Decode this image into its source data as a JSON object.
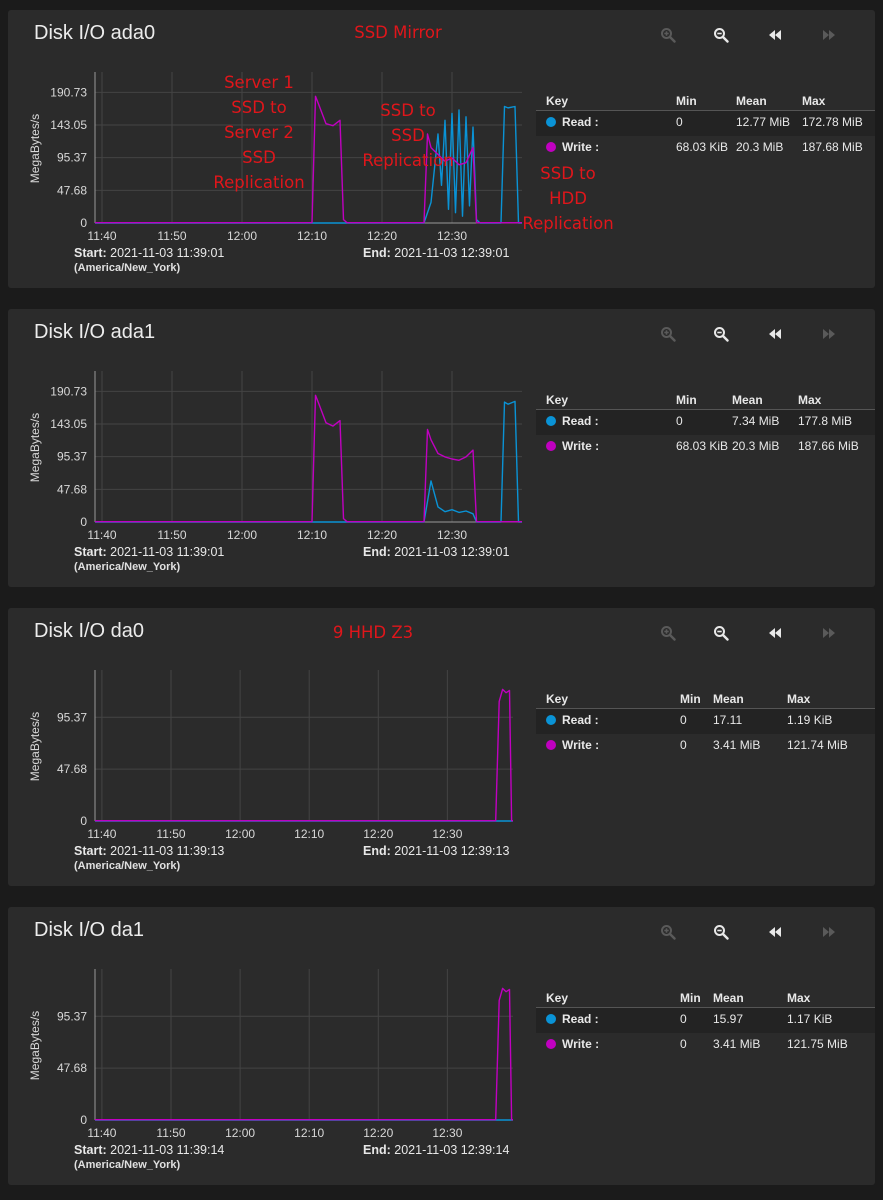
{
  "colors": {
    "read": "#0a93d6",
    "write": "#c000c0",
    "annotation": "#e0161b",
    "card": "#2b2b2b"
  },
  "toolbar_icons": [
    "zoom-in-icon",
    "zoom-out-icon",
    "rewind-icon",
    "forward-icon"
  ],
  "cards": [
    {
      "title": "Disk I/O ada0",
      "annotations": [
        {
          "text": "SSD Mirror"
        },
        {
          "text": "Server 1\nSSD to\nServer 2\nSSD\nReplication"
        },
        {
          "text": "SSD to\nSSD\nReplication"
        },
        {
          "text": "SSD to\nHDD\nReplication"
        }
      ],
      "start_label": "Start:",
      "start_value": "2021-11-03 11:39:01",
      "timezone": "(America/New_York)",
      "end_label": "End:",
      "end_value": "2021-11-03 12:39:01",
      "legend": {
        "headers": {
          "key": "Key",
          "min": "Min",
          "mean": "Mean",
          "max": "Max"
        },
        "rows": [
          {
            "name": "Read :",
            "min": "0",
            "mean": "12.77 MiB",
            "max": "172.78 MiB"
          },
          {
            "name": "Write :",
            "min": "68.03 KiB",
            "mean": "20.3 MiB",
            "max": "187.68 MiB"
          }
        ]
      }
    },
    {
      "title": "Disk I/O ada1",
      "annotations": [],
      "start_label": "Start:",
      "start_value": "2021-11-03 11:39:01",
      "timezone": "(America/New_York)",
      "end_label": "End:",
      "end_value": "2021-11-03 12:39:01",
      "legend": {
        "headers": {
          "key": "Key",
          "min": "Min",
          "mean": "Mean",
          "max": "Max"
        },
        "rows": [
          {
            "name": "Read :",
            "min": "0",
            "mean": "7.34 MiB",
            "max": "177.8 MiB"
          },
          {
            "name": "Write :",
            "min": "68.03 KiB",
            "mean": "20.3 MiB",
            "max": "187.66 MiB"
          }
        ]
      }
    },
    {
      "title": "Disk I/O da0",
      "annotations": [
        {
          "text": "9 HHD Z3"
        }
      ],
      "start_label": "Start:",
      "start_value": "2021-11-03 11:39:13",
      "timezone": "(America/New_York)",
      "end_label": "End:",
      "end_value": "2021-11-03 12:39:13",
      "legend": {
        "headers": {
          "key": "Key",
          "min": "Min",
          "mean": "Mean",
          "max": "Max"
        },
        "rows": [
          {
            "name": "Read :",
            "min": "0",
            "mean": "17.11",
            "max": "1.19 KiB"
          },
          {
            "name": "Write :",
            "min": "0",
            "mean": "3.41 MiB",
            "max": "121.74 MiB"
          }
        ]
      }
    },
    {
      "title": "Disk I/O da1",
      "annotations": [],
      "start_label": "Start:",
      "start_value": "2021-11-03 11:39:14",
      "timezone": "(America/New_York)",
      "end_label": "End:",
      "end_value": "2021-11-03 12:39:14",
      "legend": {
        "headers": {
          "key": "Key",
          "min": "Min",
          "mean": "Mean",
          "max": "Max"
        },
        "rows": [
          {
            "name": "Read :",
            "min": "0",
            "mean": "15.97",
            "max": "1.17 KiB"
          },
          {
            "name": "Write :",
            "min": "0",
            "mean": "3.41 MiB",
            "max": "121.75 MiB"
          }
        ]
      }
    }
  ],
  "chart_data": [
    {
      "type": "line",
      "ylabel": "MegaBytes/s",
      "yticks": [
        0,
        47.68,
        95.37,
        143.05,
        190.73
      ],
      "ylim": [
        0,
        200
      ],
      "xlim": [
        "11:39",
        "12:40"
      ],
      "xticks": [
        "11:40",
        "11:50",
        "12:00",
        "12:10",
        "12:20",
        "12:30"
      ],
      "grid": true,
      "series": [
        {
          "name": "Read",
          "color": "#0a93d6",
          "points": [
            [
              "11:39",
              0
            ],
            [
              "12:26",
              0
            ],
            [
              "12:27",
              30
            ],
            [
              "12:28",
              130
            ],
            [
              "12:28.5",
              55
            ],
            [
              "12:29",
              150
            ],
            [
              "12:29.5",
              20
            ],
            [
              "12:30",
              160
            ],
            [
              "12:30.5",
              15
            ],
            [
              "12:31",
              165
            ],
            [
              "12:31.5",
              10
            ],
            [
              "12:32",
              155
            ],
            [
              "12:32.5",
              25
            ],
            [
              "12:33",
              140
            ],
            [
              "12:33.5",
              5
            ],
            [
              "12:34",
              0
            ],
            [
              "12:37",
              0
            ],
            [
              "12:37.5",
              170
            ],
            [
              "12:38",
              168
            ],
            [
              "12:39",
              170
            ],
            [
              "12:39.5",
              0
            ],
            [
              "12:40",
              0
            ]
          ]
        },
        {
          "name": "Write",
          "color": "#c000c0",
          "points": [
            [
              "11:39",
              0.5
            ],
            [
              "12:10",
              0.5
            ],
            [
              "12:10.5",
              185
            ],
            [
              "12:11",
              172
            ],
            [
              "12:12",
              145
            ],
            [
              "12:13",
              142
            ],
            [
              "12:14",
              150
            ],
            [
              "12:14.5",
              5
            ],
            [
              "12:15",
              0.5
            ],
            [
              "12:26",
              0.5
            ],
            [
              "12:26.5",
              130
            ],
            [
              "12:27",
              110
            ],
            [
              "12:28",
              100
            ],
            [
              "12:29",
              90
            ],
            [
              "12:30",
              95
            ],
            [
              "12:31",
              85
            ],
            [
              "12:32",
              88
            ],
            [
              "12:33",
              110
            ],
            [
              "12:33.5",
              0.5
            ],
            [
              "12:40",
              0.5
            ]
          ]
        }
      ]
    },
    {
      "type": "line",
      "ylabel": "MegaBytes/s",
      "yticks": [
        0,
        47.68,
        95.37,
        143.05,
        190.73
      ],
      "ylim": [
        0,
        200
      ],
      "xlim": [
        "11:39",
        "12:40"
      ],
      "xticks": [
        "11:40",
        "11:50",
        "12:00",
        "12:10",
        "12:20",
        "12:30"
      ],
      "grid": true,
      "series": [
        {
          "name": "Read",
          "color": "#0a93d6",
          "points": [
            [
              "11:39",
              0
            ],
            [
              "12:26",
              0
            ],
            [
              "12:27",
              60
            ],
            [
              "12:28",
              22
            ],
            [
              "12:29",
              15
            ],
            [
              "12:30",
              18
            ],
            [
              "12:31",
              14
            ],
            [
              "12:32",
              16
            ],
            [
              "12:33",
              12
            ],
            [
              "12:33.5",
              0
            ],
            [
              "12:37",
              0
            ],
            [
              "12:37.5",
              175
            ],
            [
              "12:38",
              172
            ],
            [
              "12:39",
              176
            ],
            [
              "12:39.5",
              0
            ],
            [
              "12:40",
              0
            ]
          ]
        },
        {
          "name": "Write",
          "color": "#c000c0",
          "points": [
            [
              "11:39",
              0.5
            ],
            [
              "12:10",
              0.5
            ],
            [
              "12:10.5",
              185
            ],
            [
              "12:11",
              172
            ],
            [
              "12:12",
              145
            ],
            [
              "12:13",
              140
            ],
            [
              "12:14",
              148
            ],
            [
              "12:14.5",
              5
            ],
            [
              "12:15",
              0.5
            ],
            [
              "12:26",
              0.5
            ],
            [
              "12:26.5",
              135
            ],
            [
              "12:27",
              120
            ],
            [
              "12:28",
              100
            ],
            [
              "12:29",
              95
            ],
            [
              "12:30",
              92
            ],
            [
              "12:31",
              90
            ],
            [
              "12:32",
              95
            ],
            [
              "12:33",
              105
            ],
            [
              "12:33.5",
              0.5
            ],
            [
              "12:40",
              0.5
            ]
          ]
        }
      ]
    },
    {
      "type": "line",
      "ylabel": "MegaBytes/s",
      "yticks": [
        0,
        47.68,
        95.37
      ],
      "ylim": [
        0,
        126
      ],
      "xlim": [
        "11:39",
        "12:39.5"
      ],
      "xticks": [
        "11:40",
        "11:50",
        "12:00",
        "12:10",
        "12:20",
        "12:30"
      ],
      "grid": true,
      "series": [
        {
          "name": "Read",
          "color": "#0a93d6",
          "points": [
            [
              "11:39",
              0
            ],
            [
              "12:39.5",
              0
            ]
          ]
        },
        {
          "name": "Write",
          "color": "#c000c0",
          "points": [
            [
              "11:39",
              0.3
            ],
            [
              "12:37",
              0.3
            ],
            [
              "12:37.5",
              110
            ],
            [
              "12:38",
              121
            ],
            [
              "12:38.5",
              118
            ],
            [
              "12:39",
              120
            ],
            [
              "12:39.3",
              0.3
            ],
            [
              "12:39.5",
              0.3
            ]
          ]
        }
      ]
    },
    {
      "type": "line",
      "ylabel": "MegaBytes/s",
      "yticks": [
        0,
        47.68,
        95.37
      ],
      "ylim": [
        0,
        126
      ],
      "xlim": [
        "11:39",
        "12:39.5"
      ],
      "xticks": [
        "11:40",
        "11:50",
        "12:00",
        "12:10",
        "12:20",
        "12:30"
      ],
      "grid": true,
      "series": [
        {
          "name": "Read",
          "color": "#0a93d6",
          "points": [
            [
              "11:39",
              0
            ],
            [
              "12:39.5",
              0
            ]
          ]
        },
        {
          "name": "Write",
          "color": "#c000c0",
          "points": [
            [
              "11:39",
              0.3
            ],
            [
              "12:37",
              0.3
            ],
            [
              "12:37.5",
              110
            ],
            [
              "12:38",
              121
            ],
            [
              "12:38.5",
              118
            ],
            [
              "12:39",
              120
            ],
            [
              "12:39.3",
              0.3
            ],
            [
              "12:39.5",
              0.3
            ]
          ]
        }
      ]
    }
  ]
}
